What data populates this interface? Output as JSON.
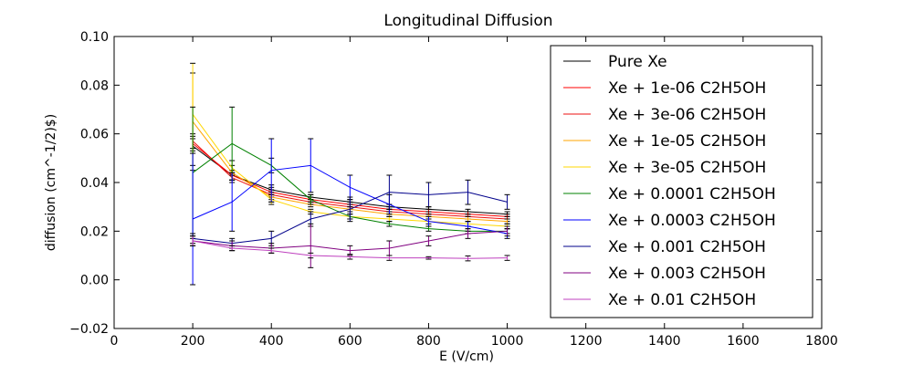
{
  "chart_data": {
    "type": "line",
    "title": "Longitudinal Diffusion",
    "xlabel": "E (V/cm)",
    "ylabel": "diffusion (cm^-1/2)$)",
    "xlim": [
      0,
      1800
    ],
    "ylim": [
      -0.02,
      0.1
    ],
    "xticks": [
      0,
      200,
      400,
      600,
      800,
      1000,
      1200,
      1400,
      1600,
      1800
    ],
    "yticks": [
      -0.02,
      0.0,
      0.02,
      0.04,
      0.06,
      0.08,
      0.1
    ],
    "xtick_labels": [
      "0",
      "200",
      "400",
      "600",
      "800",
      "1000",
      "1200",
      "1400",
      "1600",
      "1800"
    ],
    "ytick_labels": [
      "−0.02",
      "0.00",
      "0.02",
      "0.04",
      "0.06",
      "0.08",
      "0.10"
    ],
    "grid": false,
    "legend_position": "top-right",
    "x": [
      200,
      300,
      400,
      500,
      600,
      700,
      800,
      900,
      1000
    ],
    "series": [
      {
        "name": "Pure Xe",
        "color": "#000000",
        "values": [
          0.055,
          0.043,
          0.037,
          0.034,
          0.032,
          0.03,
          0.029,
          0.028,
          0.027
        ],
        "errors": [
          0.003,
          0.002,
          0.002,
          0.001,
          0.001,
          0.001,
          0.001,
          0.001,
          0.001
        ]
      },
      {
        "name": "Xe + 1e-06 C2H5OH",
        "color": "#ff0000",
        "values": [
          0.056,
          0.043,
          0.036,
          0.033,
          0.031,
          0.029,
          0.028,
          0.027,
          0.026
        ],
        "errors": [
          0.003,
          0.002,
          0.002,
          0.001,
          0.001,
          0.001,
          0.001,
          0.001,
          0.001
        ]
      },
      {
        "name": "Xe + 3e-06 C2H5OH",
        "color": "#ee1111",
        "values": [
          0.057,
          0.042,
          0.035,
          0.032,
          0.03,
          0.028,
          0.027,
          0.026,
          0.025
        ],
        "errors": [
          0.003,
          0.002,
          0.002,
          0.001,
          0.001,
          0.001,
          0.001,
          0.001,
          0.001
        ]
      },
      {
        "name": "Xe + 1e-05 C2H5OH",
        "color": "#ffa500",
        "values": [
          0.065,
          0.044,
          0.034,
          0.031,
          0.029,
          0.027,
          0.026,
          0.025,
          0.024
        ],
        "errors": [
          0.02,
          0.003,
          0.002,
          0.001,
          0.001,
          0.001,
          0.001,
          0.001,
          0.001
        ]
      },
      {
        "name": "Xe + 3e-05 C2H5OH",
        "color": "#ffd700",
        "values": [
          0.068,
          0.046,
          0.033,
          0.028,
          0.026,
          0.025,
          0.024,
          0.023,
          0.022
        ],
        "errors": [
          0.021,
          0.003,
          0.002,
          0.001,
          0.001,
          0.001,
          0.001,
          0.001,
          0.001
        ]
      },
      {
        "name": "Xe + 0.0001 C2H5OH",
        "color": "#008000",
        "values": [
          0.044,
          0.056,
          0.047,
          0.033,
          0.026,
          0.023,
          0.021,
          0.02,
          0.02
        ],
        "errors": [
          0.027,
          0.015,
          0.003,
          0.002,
          0.001,
          0.001,
          0.001,
          0.001,
          0.001
        ]
      },
      {
        "name": "Xe + 0.0003 C2H5OH",
        "color": "#0000ff",
        "values": [
          0.025,
          0.032,
          0.045,
          0.047,
          0.038,
          0.031,
          0.024,
          0.022,
          0.019
        ],
        "errors": [
          0.027,
          0.012,
          0.013,
          0.011,
          0.005,
          0.004,
          0.002,
          0.002,
          0.002
        ]
      },
      {
        "name": "Xe + 0.001 C2H5OH",
        "color": "#00008b",
        "values": [
          0.017,
          0.015,
          0.017,
          0.025,
          0.029,
          0.036,
          0.035,
          0.036,
          0.032
        ],
        "errors": [
          0.002,
          0.002,
          0.003,
          0.003,
          0.005,
          0.007,
          0.005,
          0.005,
          0.003
        ]
      },
      {
        "name": "Xe + 0.003 C2H5OH",
        "color": "#800080",
        "values": [
          0.016,
          0.014,
          0.013,
          0.014,
          0.012,
          0.013,
          0.016,
          0.019,
          0.02
        ],
        "errors": [
          0.002,
          0.002,
          0.002,
          0.009,
          0.002,
          0.003,
          0.002,
          0.002,
          0.002
        ]
      },
      {
        "name": "Xe + 0.01 C2H5OH",
        "color": "#bf40bf",
        "values": [
          0.016,
          0.013,
          0.012,
          0.01,
          0.0095,
          0.009,
          0.009,
          0.0088,
          0.009
        ],
        "errors": [
          0.002,
          0.001,
          0.001,
          0.001,
          0.001,
          0.001,
          0.0005,
          0.001,
          0.001
        ]
      }
    ]
  }
}
